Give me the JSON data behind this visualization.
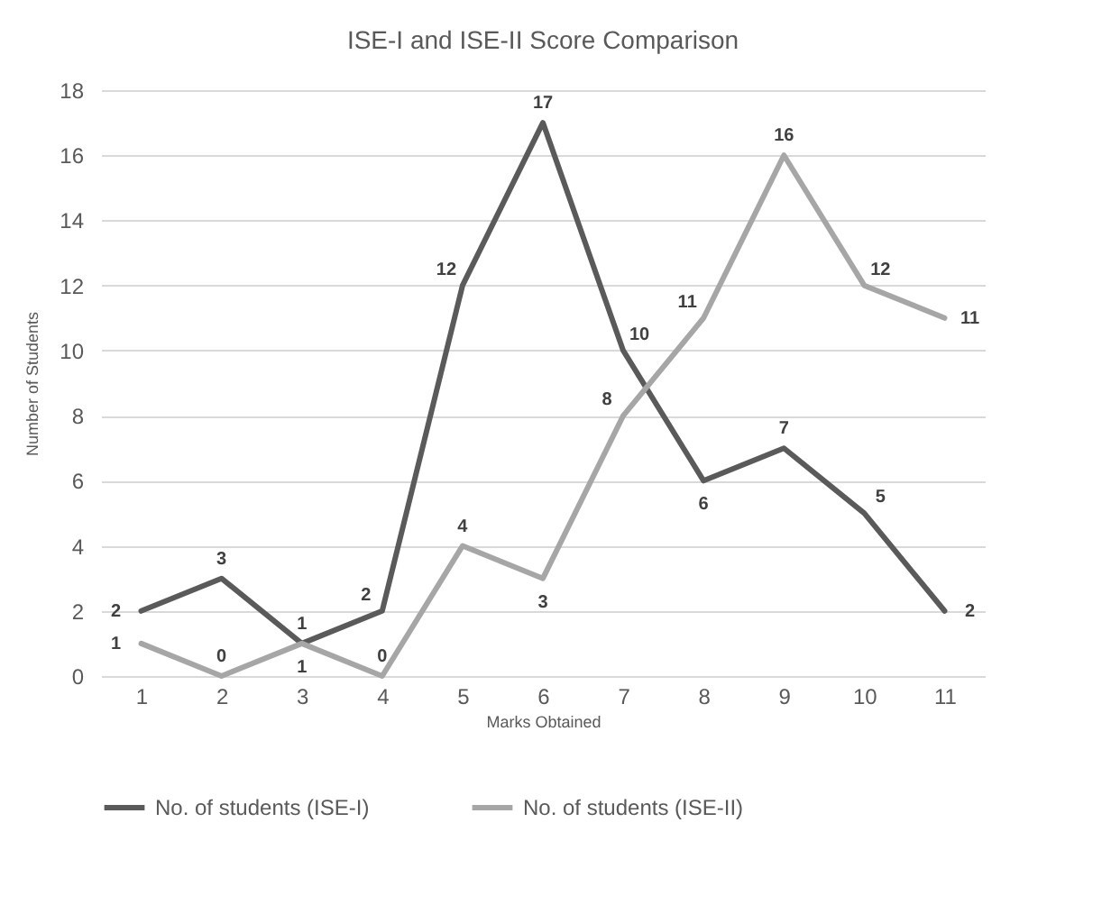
{
  "chart_data": {
    "type": "line",
    "title": "ISE-I and ISE-II Score Comparison",
    "xlabel": "Marks Obtained",
    "ylabel": "Number of Students",
    "categories": [
      "1",
      "2",
      "3",
      "4",
      "5",
      "6",
      "7",
      "8",
      "9",
      "10",
      "11"
    ],
    "series": [
      {
        "name": "No. of students (ISE-I)",
        "color": "#5a5a5a",
        "values": [
          2,
          3,
          1,
          2,
          12,
          17,
          10,
          6,
          7,
          5,
          2
        ]
      },
      {
        "name": "No. of students (ISE-II)",
        "color": "#a6a6a6",
        "values": [
          1,
          0,
          1,
          0,
          4,
          3,
          8,
          11,
          16,
          12,
          11
        ]
      }
    ],
    "ylim": [
      0,
      18
    ],
    "yticks": [
      0,
      2,
      4,
      6,
      8,
      10,
      12,
      14,
      16,
      18
    ],
    "grid": "y",
    "legend": "bottom",
    "data_labels": true,
    "marker": "none",
    "line_style": "solid"
  }
}
